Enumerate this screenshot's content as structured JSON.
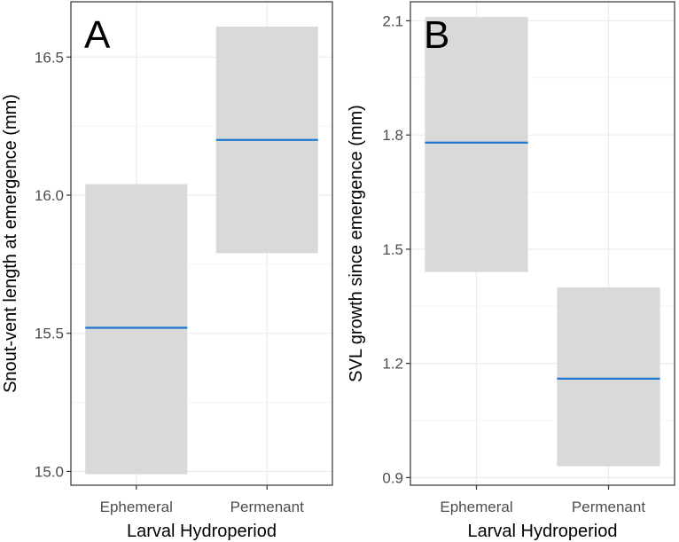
{
  "figure": {
    "layout": "two-panel"
  },
  "colors": {
    "box_fill": "#d9d9d9",
    "mean_line": "#1f78d1",
    "grid_major": "#ebebeb",
    "grid_minor": "#f4f4f4",
    "panel_border": "#333333",
    "tick_text": "#4d4d4d"
  },
  "chart_data": [
    {
      "type": "crossbar",
      "panel_label": "A",
      "xlabel": "Larval Hydroperiod",
      "ylabel": "Snout-vent length at emergence (mm)",
      "categories": [
        "Ephemeral",
        "Permenant"
      ],
      "mean": [
        15.52,
        16.2
      ],
      "lower": [
        14.99,
        15.79
      ],
      "upper": [
        16.04,
        16.61
      ],
      "ylim": [
        14.95,
        16.7
      ],
      "yticks": [
        15.0,
        15.5,
        16.0,
        16.5
      ],
      "ytick_labels": [
        "15.0",
        "15.5",
        "16.0",
        "16.5"
      ],
      "grid": true
    },
    {
      "type": "crossbar",
      "panel_label": "B",
      "xlabel": "Larval Hydroperiod",
      "ylabel": "SVL growth since emergence (mm)",
      "categories": [
        "Ephemeral",
        "Permenant"
      ],
      "mean": [
        1.78,
        1.16
      ],
      "lower": [
        1.44,
        0.93
      ],
      "upper": [
        2.11,
        1.4
      ],
      "ylim": [
        0.88,
        2.15
      ],
      "yticks": [
        0.9,
        1.2,
        1.5,
        1.8,
        2.1
      ],
      "ytick_labels": [
        "0.9",
        "1.2",
        "1.5",
        "1.8",
        "2.1"
      ],
      "grid": true
    }
  ]
}
